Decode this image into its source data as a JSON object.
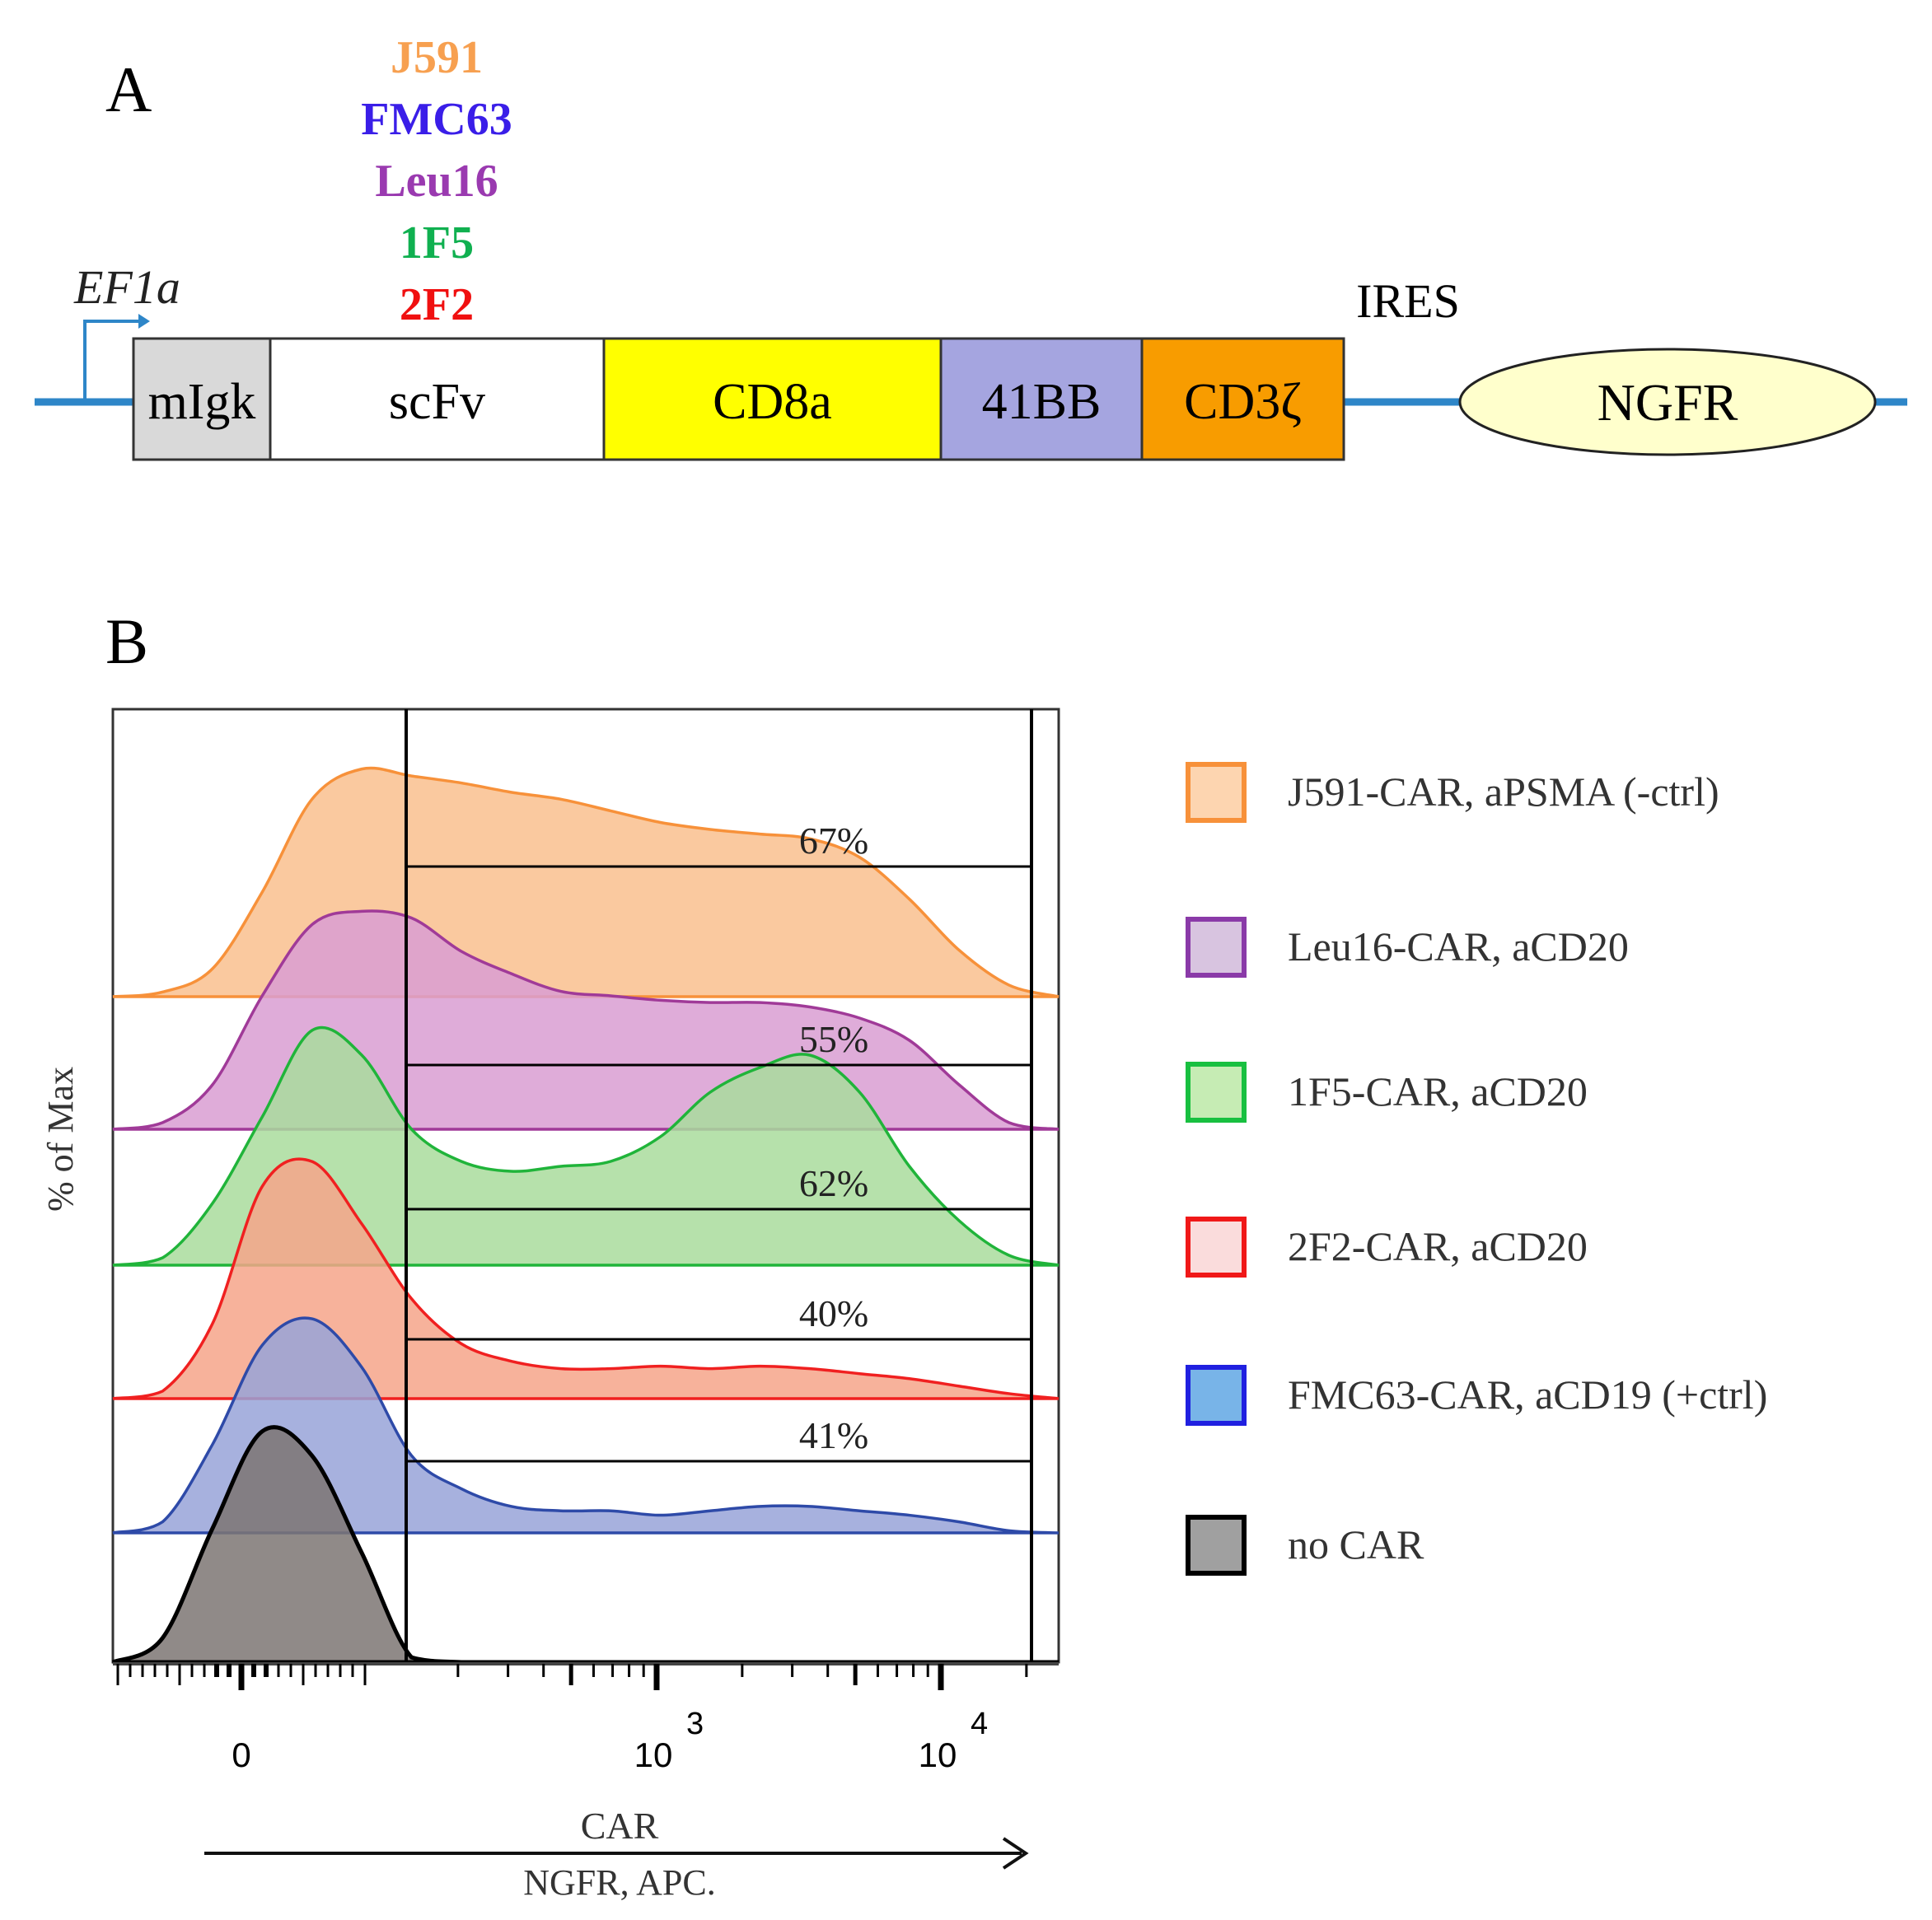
{
  "panel_a": {
    "label": "A",
    "promoter": "EF1a",
    "scfv_variants": [
      {
        "name": "J591",
        "color": "#f7a050"
      },
      {
        "name": "FMC63",
        "color": "#3a1ee8"
      },
      {
        "name": "Leu16",
        "color": "#9a3ab0"
      },
      {
        "name": "1F5",
        "color": "#10b050"
      },
      {
        "name": "2F2",
        "color": "#f01010"
      }
    ],
    "segments": [
      {
        "label": "mIgk",
        "color": "#d9d9d9"
      },
      {
        "label": "scFv",
        "color": "#ffffff"
      },
      {
        "label": "CD8a",
        "color": "#ffff00"
      },
      {
        "label": "41BB",
        "color": "#a5a5e0"
      },
      {
        "label": "CD3ζ",
        "color": "#f89c00"
      }
    ],
    "ires": "IRES",
    "ngfr": {
      "label": "NGFR",
      "color": "#ffffcc"
    },
    "backbone_color": "#2e86c8"
  },
  "panel_b": {
    "label": "B"
  },
  "chart_data": {
    "type": "area",
    "title": "",
    "xlabel": "CAR",
    "xlabel2": "NGFR, APC.",
    "ylabel": "% of Max",
    "x_tick_labels": [
      {
        "base": "0",
        "exp": ""
      },
      {
        "base": "10",
        "exp": "3"
      },
      {
        "base": "10",
        "exp": "4"
      }
    ],
    "x_samples_note": "density sampled at 20 evenly spaced positions across the axis",
    "series": [
      {
        "name": "J591-CAR, aPSMA (-ctrl)",
        "gate_percent": "67%",
        "fill": "#f9c08e",
        "stroke": "#f7913a",
        "legend_fill": "#fdd5b0",
        "legend_stroke": "#f7913a",
        "density": [
          0,
          2,
          12,
          45,
          85,
          98,
          95,
          92,
          88,
          85,
          80,
          75,
          72,
          70,
          68,
          60,
          42,
          20,
          5,
          0
        ]
      },
      {
        "name": "Leu16-CAR, aCD20",
        "gate_percent": "55%",
        "fill": "#d99ed2",
        "stroke": "#a03a98",
        "legend_fill": "#d8c4e0",
        "legend_stroke": "#8a3aa8",
        "density": [
          0,
          3,
          20,
          60,
          92,
          98,
          95,
          80,
          70,
          62,
          60,
          58,
          57,
          57,
          55,
          50,
          40,
          20,
          3,
          0
        ]
      },
      {
        "name": "1F5-CAR, aCD20",
        "gate_percent": "62%",
        "fill": "#a9dc9c",
        "stroke": "#20b43a",
        "legend_fill": "#c6ecb4",
        "legend_stroke": "#18c040",
        "density": [
          0,
          3,
          25,
          60,
          95,
          85,
          55,
          42,
          38,
          40,
          42,
          52,
          70,
          80,
          85,
          70,
          40,
          18,
          4,
          0
        ]
      },
      {
        "name": "2F2-CAR, aCD20",
        "gate_percent": "40%",
        "fill": "#f6a58a",
        "stroke": "#f02020",
        "legend_fill": "#fadcdc",
        "legend_stroke": "#f01818",
        "density": [
          0,
          3,
          30,
          85,
          95,
          70,
          40,
          22,
          15,
          12,
          12,
          13,
          12,
          13,
          12,
          10,
          8,
          5,
          2,
          0
        ]
      },
      {
        "name": "FMC63-CAR, aCD19 (+ctrl)",
        "gate_percent": "41%",
        "fill": "#98a3d8",
        "stroke": "#2e4aa8",
        "legend_fill": "#78b4e8",
        "legend_stroke": "#2020e0",
        "density": [
          0,
          5,
          40,
          85,
          97,
          75,
          35,
          20,
          12,
          10,
          10,
          8,
          10,
          12,
          12,
          10,
          8,
          5,
          1,
          0
        ]
      },
      {
        "name": "no CAR",
        "gate_percent": "",
        "fill": "#7c7673",
        "stroke": "#000000",
        "legend_fill": "#a0a0a0",
        "legend_stroke": "#000000",
        "density": [
          0,
          10,
          55,
          95,
          85,
          45,
          2,
          0,
          0,
          0,
          0,
          0,
          0,
          0,
          0,
          0,
          0,
          0,
          0,
          0
        ]
      }
    ]
  }
}
